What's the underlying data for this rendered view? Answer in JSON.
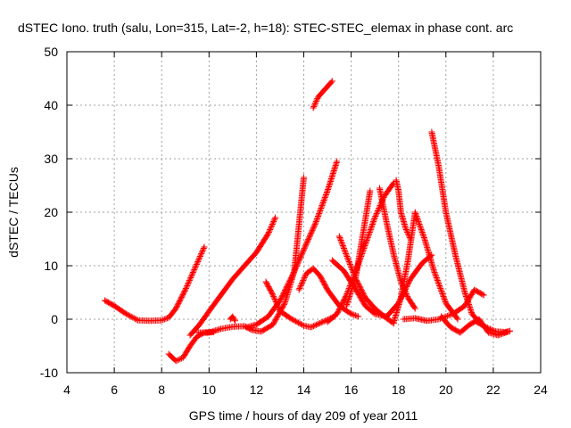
{
  "chart_data": {
    "type": "scatter",
    "title": "dSTEC Iono. truth (salu, Lon=315, Lat=-2, h=18): STEC-STEC_elemax in phase cont. arc",
    "xlabel": "GPS time / hours of day 209 of year 2011",
    "ylabel": "dSTEC  / TECUs",
    "xlim": [
      4,
      24
    ],
    "ylim": [
      -10,
      50
    ],
    "xticks": [
      4,
      6,
      8,
      10,
      12,
      14,
      16,
      18,
      20,
      22,
      24
    ],
    "yticks": [
      -10,
      0,
      10,
      20,
      30,
      40,
      50
    ],
    "grid": true,
    "marker": "plus",
    "color": "#ff0000",
    "series": [
      {
        "x": [
          5.6,
          6.0,
          6.5,
          7.0,
          7.5,
          8.0,
          8.3,
          8.6,
          9.0,
          9.4,
          9.8
        ],
        "y": [
          3.5,
          2.5,
          1.0,
          -0.2,
          -0.3,
          -0.2,
          0.3,
          2.0,
          5.5,
          9.5,
          13.5
        ]
      },
      {
        "x": [
          8.3,
          8.6,
          8.9,
          9.2,
          9.5,
          9.8,
          10.2
        ],
        "y": [
          -6.5,
          -7.8,
          -7.2,
          -5.0,
          -3.2,
          -2.5,
          -2.4
        ]
      },
      {
        "x": [
          9.2,
          9.6,
          10.0,
          10.5,
          11.0,
          11.5,
          12.0,
          12.5,
          12.8
        ],
        "y": [
          -3.0,
          -1.0,
          1.5,
          4.5,
          7.5,
          10.0,
          12.5,
          16.0,
          19.0
        ]
      },
      {
        "x": [
          9.5,
          10.0,
          10.5,
          11.0,
          11.5,
          11.8,
          12.2,
          12.7,
          13.2,
          13.6,
          14.0
        ],
        "y": [
          -2.5,
          -2.5,
          -1.8,
          -1.4,
          -1.3,
          -2.0,
          -2.3,
          -1.0,
          3.0,
          9.0,
          26.5
        ]
      },
      {
        "x": [
          10.9,
          11.0,
          11.1
        ],
        "y": [
          0.0,
          0.5,
          -0.3
        ]
      },
      {
        "x": [
          11.6,
          12.0,
          12.5,
          13.0,
          13.5,
          14.0,
          14.5,
          15.0,
          15.4
        ],
        "y": [
          -1.5,
          -1.0,
          0.5,
          3.5,
          8.0,
          13.0,
          18.0,
          24.0,
          29.5
        ]
      },
      {
        "x": [
          12.4,
          12.7,
          13.0,
          13.5,
          14.0,
          14.3,
          14.8,
          15.3
        ],
        "y": [
          7.0,
          4.5,
          1.5,
          0.0,
          -1.2,
          -1.5,
          -0.5,
          0.5
        ]
      },
      {
        "x": [
          13.8,
          14.1,
          14.4,
          14.7,
          15.0,
          15.5,
          16.0,
          16.3
        ],
        "y": [
          5.5,
          8.5,
          9.5,
          8.0,
          5.5,
          2.5,
          1.0,
          0.5
        ]
      },
      {
        "x": [
          14.4,
          14.6,
          14.8,
          15.0,
          15.2
        ],
        "y": [
          39.5,
          41.5,
          42.5,
          43.5,
          44.5
        ]
      },
      {
        "x": [
          15.0,
          15.4,
          15.8,
          16.2,
          16.6,
          17.0,
          17.4,
          17.8
        ],
        "y": [
          -0.5,
          1.0,
          4.5,
          9.0,
          14.0,
          19.0,
          23.0,
          25.5
        ]
      },
      {
        "x": [
          15.5,
          15.8,
          16.2,
          16.6,
          17.0,
          17.4,
          17.8
        ],
        "y": [
          15.5,
          12.0,
          7.5,
          4.0,
          2.0,
          0.5,
          -0.8
        ]
      },
      {
        "x": [
          15.2,
          15.7,
          16.2,
          16.6,
          17.0,
          17.5,
          18.0,
          18.5,
          19.0,
          19.4
        ],
        "y": [
          11.0,
          9.0,
          5.5,
          2.5,
          1.0,
          0.5,
          3.0,
          7.5,
          10.5,
          12.0
        ]
      },
      {
        "x": [
          15.8,
          16.2,
          16.5,
          16.8
        ],
        "y": [
          2.5,
          8.0,
          16.0,
          24.0
        ]
      },
      {
        "x": [
          17.2,
          17.5,
          17.8,
          18.1,
          18.4,
          18.7
        ],
        "y": [
          24.5,
          18.0,
          12.0,
          7.0,
          4.0,
          2.0
        ]
      },
      {
        "x": [
          17.8,
          18.1,
          18.4,
          18.7,
          19.1,
          19.5,
          20.0,
          20.5
        ],
        "y": [
          -0.5,
          4.0,
          11.0,
          20.0,
          15.0,
          9.0,
          3.0,
          0.0
        ]
      },
      {
        "x": [
          17.9,
          18.0,
          18.1,
          18.3,
          18.5
        ],
        "y": [
          26.0,
          24.0,
          20.0,
          17.0,
          15.0
        ]
      },
      {
        "x": [
          18.2,
          18.7,
          19.2,
          19.7,
          20.0,
          20.3,
          20.8,
          21.2,
          21.6
        ],
        "y": [
          0.0,
          0.2,
          -0.3,
          0.0,
          0.5,
          1.0,
          2.5,
          5.5,
          4.5
        ]
      },
      {
        "x": [
          19.4,
          19.7,
          20.0,
          20.4,
          20.8,
          21.1,
          21.4
        ],
        "y": [
          35.0,
          28.5,
          20.0,
          12.0,
          5.0,
          1.0,
          -0.5
        ]
      },
      {
        "x": [
          19.8,
          20.2,
          20.6,
          21.0,
          21.4,
          21.8,
          22.2,
          22.7
        ],
        "y": [
          0.5,
          -1.5,
          -2.5,
          -1.0,
          0.0,
          -2.5,
          -3.0,
          -2.2
        ]
      },
      {
        "x": [
          21.3,
          21.7,
          22.1,
          22.5,
          22.7
        ],
        "y": [
          -0.5,
          -1.5,
          -2.3,
          -2.4,
          -2.2
        ]
      }
    ]
  }
}
